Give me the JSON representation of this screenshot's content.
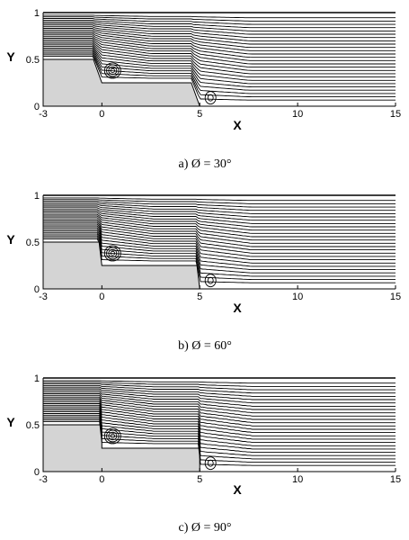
{
  "figure": {
    "panels": [
      {
        "caption": "a) Ø = 30°",
        "angle_deg": 30,
        "xlabel": "X",
        "ylabel": "Y",
        "xticks": [
          "-3",
          "0",
          "5",
          "10",
          "15"
        ],
        "yticks": [
          "0",
          "0.5",
          "1"
        ]
      },
      {
        "caption": "b)  Ø = 60°",
        "angle_deg": 60,
        "xlabel": "X",
        "ylabel": "Y",
        "xticks": [
          "-3",
          "0",
          "5",
          "10",
          "15"
        ],
        "yticks": [
          "0",
          "0.5",
          "1"
        ]
      },
      {
        "caption": "c)  Ø = 90°",
        "angle_deg": 90,
        "xlabel": "X",
        "ylabel": "Y",
        "xticks": [
          "-3",
          "0",
          "5",
          "10",
          "15"
        ],
        "yticks": [
          "0",
          "0.5",
          "1"
        ]
      }
    ],
    "domain": {
      "x_range": [
        -3,
        15
      ],
      "y_range": [
        0,
        1
      ],
      "first_step": {
        "x": 0,
        "top_height": 0.5,
        "bottom_height": 0.25
      },
      "second_step": {
        "x": 5,
        "top_height": 0.25,
        "bottom_height": 0
      }
    },
    "colors": {
      "line": "#000000",
      "solid": "#d4d4d4",
      "background": "#ffffff"
    }
  }
}
